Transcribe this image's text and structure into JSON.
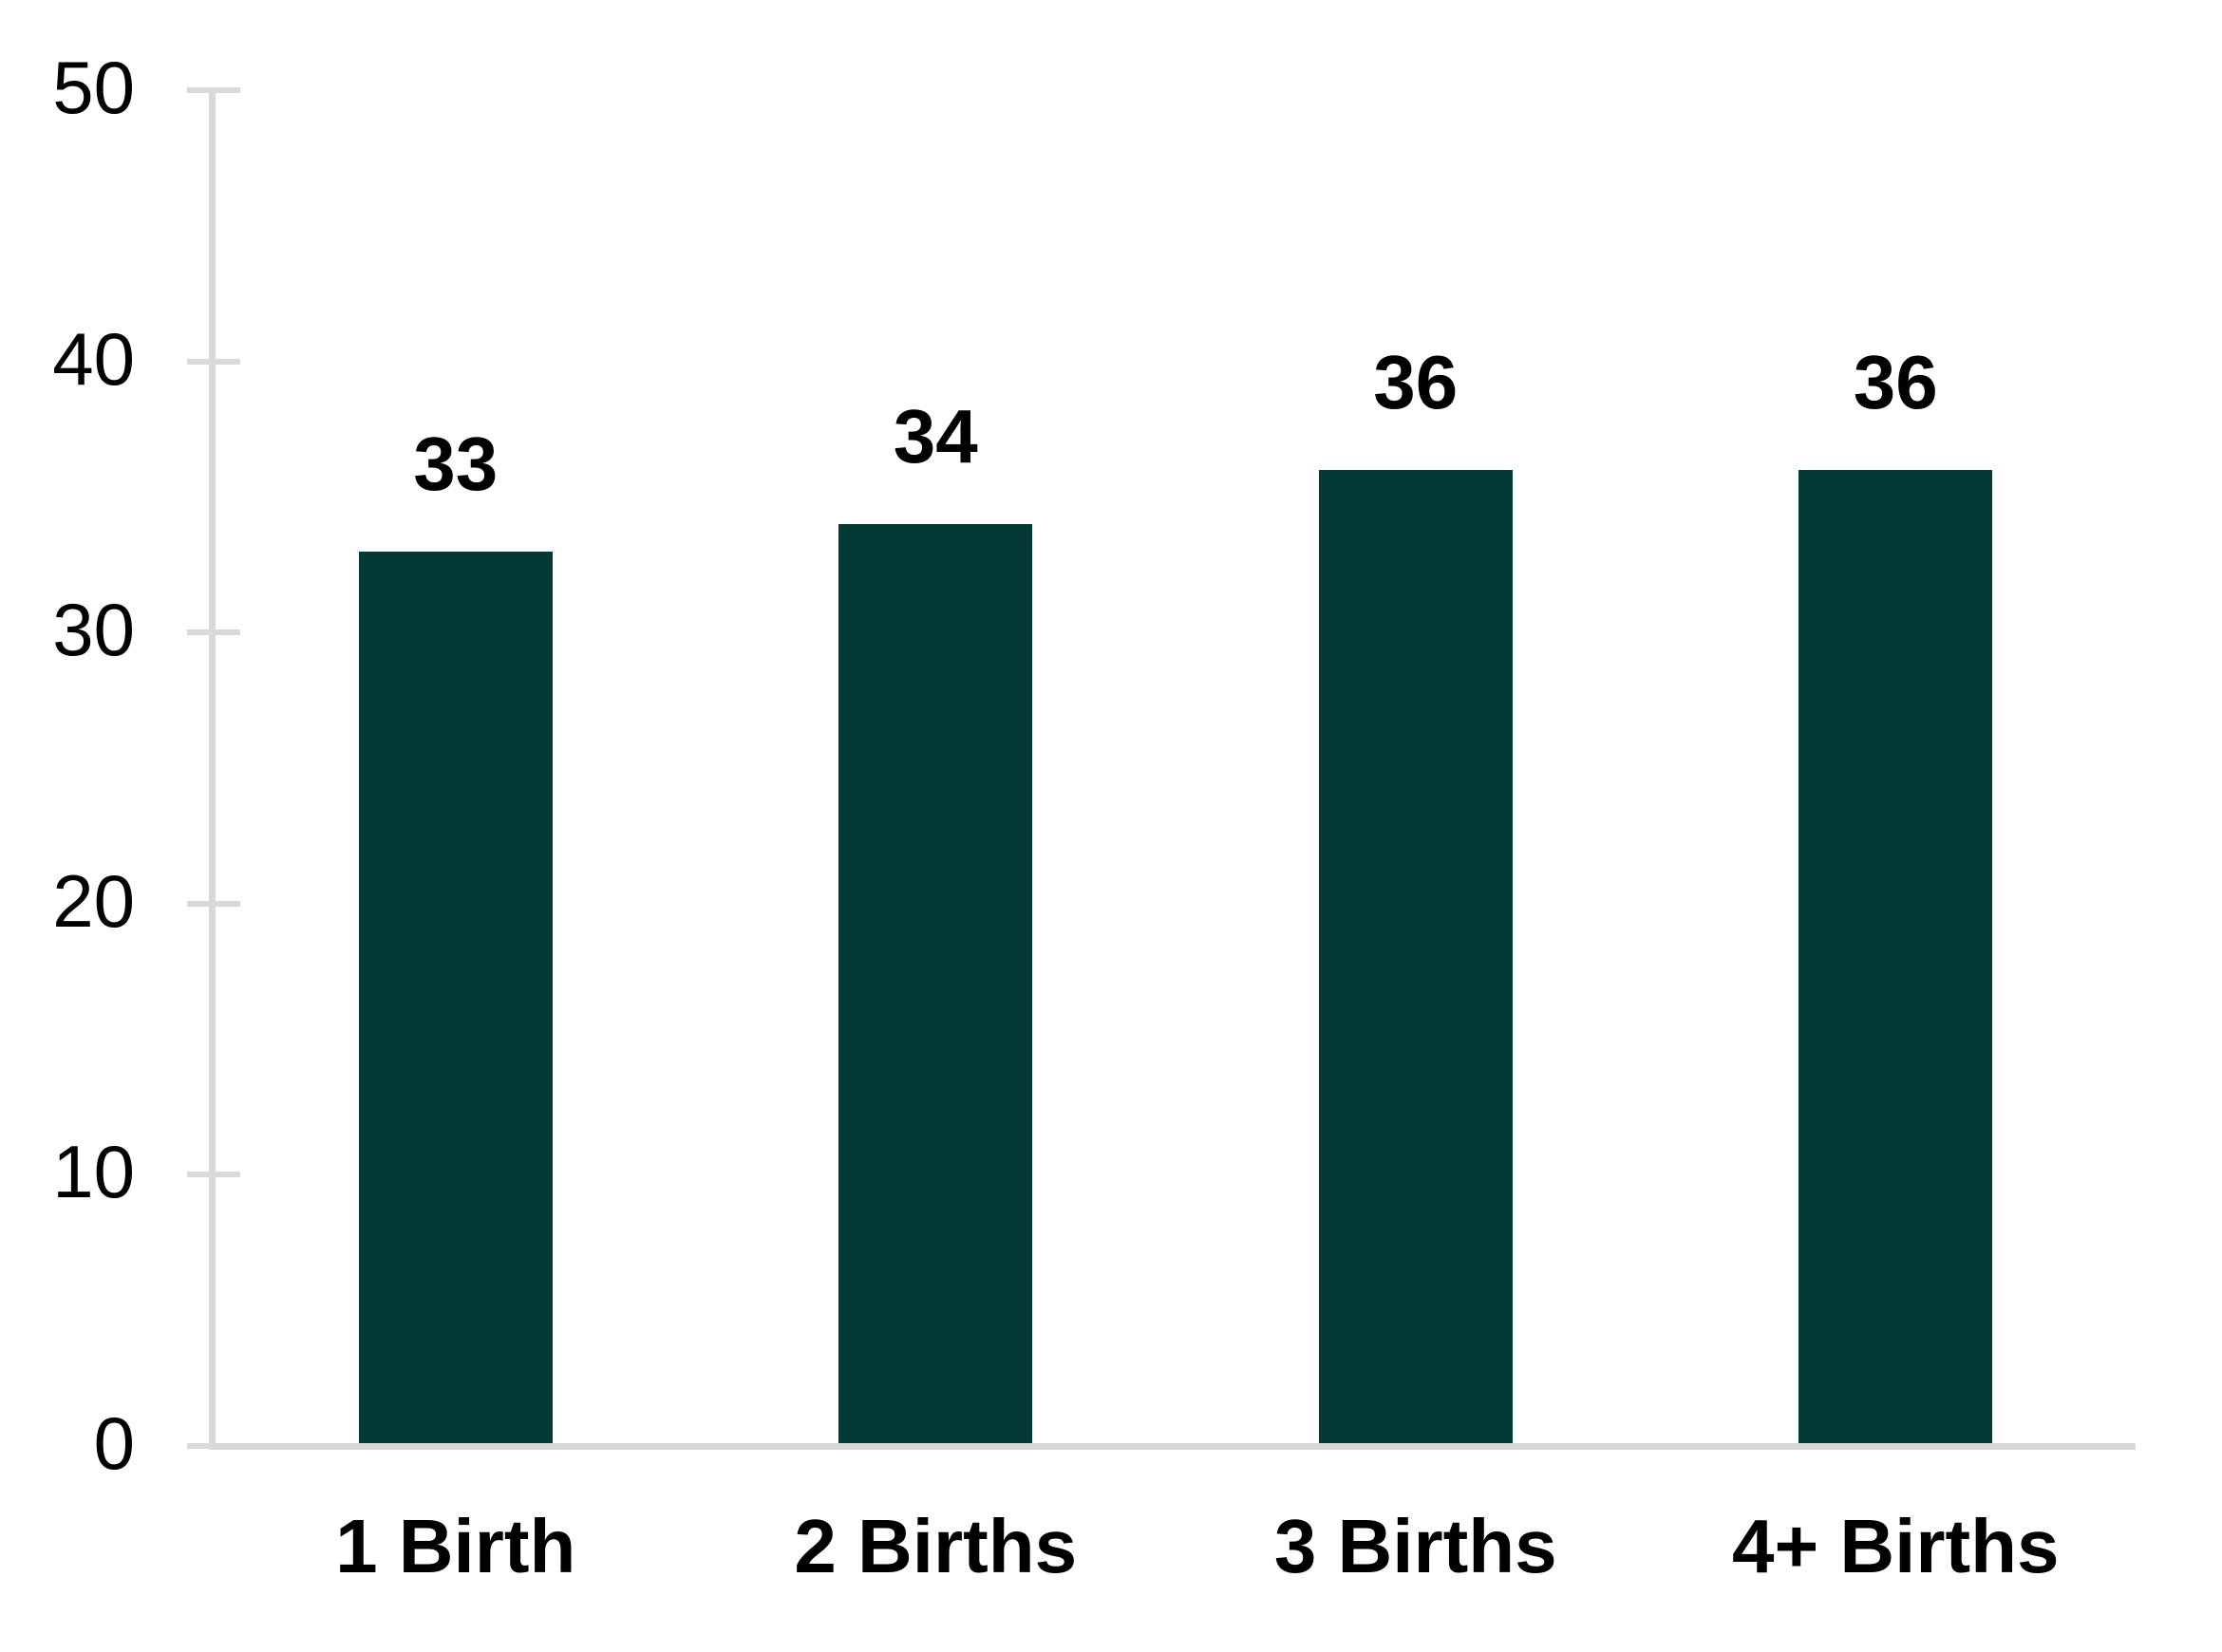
{
  "chart_data": {
    "type": "bar",
    "categories": [
      "1 Birth",
      "2 Births",
      "3 Births",
      "4+ Births"
    ],
    "values": [
      33,
      34,
      36,
      36
    ],
    "data_labels": [
      "33",
      "34",
      "36",
      "36"
    ],
    "yticks": [
      0,
      10,
      20,
      30,
      40,
      50
    ],
    "ytick_labels": [
      "0",
      "10",
      "20",
      "30",
      "40",
      "50"
    ],
    "ylim": [
      0,
      50
    ],
    "title": "",
    "xlabel": "",
    "ylabel": "",
    "grid": "off",
    "legend": "none",
    "bar_color": "#043A36",
    "axis_color": "#D9D9D9",
    "text_color": "#000000",
    "background_color": "#FFFFFF"
  }
}
